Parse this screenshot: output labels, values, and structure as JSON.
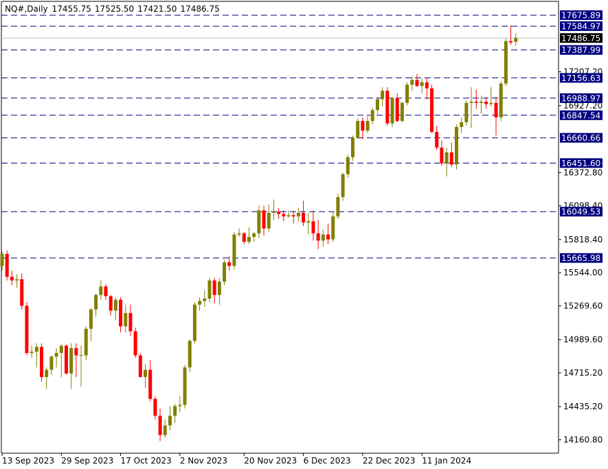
{
  "header": {
    "symbol": "NQ#,Daily",
    "open": "17455.75",
    "high": "17525.50",
    "low": "17421.50",
    "close": "17486.75"
  },
  "colors": {
    "up": "#808000",
    "down": "#ff0000",
    "level_line": "#000080",
    "price_box": "#000080",
    "current_box": "#000000",
    "axis": "#000000"
  },
  "chart_data": {
    "type": "candlestick",
    "title": "",
    "y_range": [
      14050,
      17790
    ],
    "y_tick_labels": [
      "17207.20",
      "16927.20",
      "16372.80",
      "16098.40",
      "15818.40",
      "15544.00",
      "15269.60",
      "14989.60",
      "14715.20",
      "14435.20",
      "14160.80"
    ],
    "x_tick_labels": [
      {
        "label": "13 Sep 2023",
        "index": 0
      },
      {
        "label": "29 Sep 2023",
        "index": 12
      },
      {
        "label": "17 Oct 2023",
        "index": 24
      },
      {
        "label": "2 Nov 2023",
        "index": 36
      },
      {
        "label": "20 Nov 2023",
        "index": 49
      },
      {
        "label": "6 Dec 2023",
        "index": 61
      },
      {
        "label": "22 Dec 2023",
        "index": 73
      },
      {
        "label": "11 Jan 2024",
        "index": 85
      }
    ],
    "levels": [
      "17675.89",
      "17584.97",
      "17387.99",
      "17156.63",
      "16988.97",
      "16847.54",
      "16660.66",
      "16451.60",
      "16049.53",
      "15665.98"
    ],
    "current_price": "17486.75",
    "candles": [
      [
        15600,
        15720,
        15560,
        15700
      ],
      [
        15700,
        15730,
        15480,
        15510
      ],
      [
        15510,
        15560,
        15440,
        15480
      ],
      [
        15480,
        15530,
        15420,
        15490
      ],
      [
        15490,
        15540,
        15240,
        15270
      ],
      [
        15270,
        15300,
        14860,
        14880
      ],
      [
        14880,
        14940,
        14840,
        14890
      ],
      [
        14890,
        14960,
        14760,
        14930
      ],
      [
        14930,
        14960,
        14640,
        14680
      ],
      [
        14680,
        14760,
        14580,
        14740
      ],
      [
        14740,
        14860,
        14700,
        14850
      ],
      [
        14850,
        14920,
        14760,
        14880
      ],
      [
        14880,
        14950,
        14680,
        14940
      ],
      [
        14940,
        14950,
        14700,
        14710
      ],
      [
        14710,
        14960,
        14580,
        14920
      ],
      [
        14920,
        14960,
        14680,
        14860
      ],
      [
        14860,
        14940,
        14600,
        14860
      ],
      [
        14860,
        15100,
        14820,
        15080
      ],
      [
        15080,
        15250,
        14980,
        15240
      ],
      [
        15240,
        15370,
        15180,
        15360
      ],
      [
        15360,
        15480,
        15320,
        15430
      ],
      [
        15430,
        15450,
        15320,
        15350
      ],
      [
        15350,
        15360,
        15190,
        15230
      ],
      [
        15230,
        15340,
        15150,
        15320
      ],
      [
        15320,
        15340,
        15050,
        15100
      ],
      [
        15100,
        15280,
        15050,
        15210
      ],
      [
        15210,
        15280,
        15020,
        15060
      ],
      [
        15060,
        15090,
        14840,
        14860
      ],
      [
        14860,
        14880,
        14680,
        14680
      ],
      [
        14680,
        14790,
        14590,
        14740
      ],
      [
        14740,
        14820,
        14480,
        14500
      ],
      [
        14500,
        14520,
        14330,
        14360
      ],
      [
        14360,
        14420,
        14150,
        14200
      ],
      [
        14200,
        14330,
        14180,
        14280
      ],
      [
        14280,
        14440,
        14240,
        14360
      ],
      [
        14360,
        14460,
        14300,
        14440
      ],
      [
        14440,
        14520,
        14390,
        14450
      ],
      [
        14450,
        14780,
        14420,
        14760
      ],
      [
        14760,
        14990,
        14720,
        14980
      ],
      [
        14980,
        15300,
        14960,
        15280
      ],
      [
        15280,
        15340,
        15230,
        15310
      ],
      [
        15310,
        15400,
        15260,
        15330
      ],
      [
        15330,
        15500,
        15300,
        15480
      ],
      [
        15480,
        15500,
        15290,
        15360
      ],
      [
        15360,
        15500,
        15280,
        15470
      ],
      [
        15470,
        15650,
        15440,
        15630
      ],
      [
        15630,
        15680,
        15560,
        15600
      ],
      [
        15600,
        15880,
        15570,
        15860
      ],
      [
        15860,
        15910,
        15840,
        15870
      ],
      [
        15870,
        15880,
        15780,
        15800
      ],
      [
        15800,
        15920,
        15780,
        15840
      ],
      [
        15840,
        15880,
        15800,
        15870
      ],
      [
        15870,
        16100,
        15830,
        16060
      ],
      [
        16060,
        16100,
        15850,
        15910
      ],
      [
        15910,
        16110,
        15880,
        16040
      ],
      [
        16040,
        16150,
        15980,
        16050
      ],
      [
        16050,
        16080,
        15990,
        16030
      ],
      [
        16030,
        16060,
        15970,
        16010
      ],
      [
        16010,
        16060,
        16000,
        16020
      ],
      [
        16020,
        16060,
        15950,
        16010
      ],
      [
        16010,
        16080,
        15970,
        16040
      ],
      [
        16040,
        16140,
        15930,
        15960
      ],
      [
        15960,
        16040,
        15860,
        15970
      ],
      [
        15970,
        16060,
        15810,
        15870
      ],
      [
        15870,
        15980,
        15740,
        15810
      ],
      [
        15810,
        15900,
        15760,
        15860
      ],
      [
        15860,
        15950,
        15780,
        15820
      ],
      [
        15820,
        16050,
        15800,
        16010
      ],
      [
        16010,
        16200,
        15990,
        16170
      ],
      [
        16170,
        16370,
        16140,
        16360
      ],
      [
        16360,
        16520,
        16330,
        16500
      ],
      [
        16500,
        16680,
        16470,
        16660
      ],
      [
        16660,
        16820,
        16650,
        16800
      ],
      [
        16800,
        16830,
        16650,
        16720
      ],
      [
        16720,
        16840,
        16700,
        16800
      ],
      [
        16800,
        16910,
        16770,
        16890
      ],
      [
        16890,
        17000,
        16860,
        16980
      ],
      [
        16980,
        17080,
        16920,
        17050
      ],
      [
        17050,
        17080,
        16760,
        16780
      ],
      [
        16780,
        17000,
        16750,
        16990
      ],
      [
        16990,
        17030,
        16790,
        16800
      ],
      [
        16800,
        16960,
        16790,
        16950
      ],
      [
        16950,
        17120,
        16930,
        17100
      ],
      [
        17100,
        17170,
        17050,
        17140
      ],
      [
        17140,
        17190,
        17080,
        17090
      ],
      [
        17090,
        17150,
        17030,
        17120
      ],
      [
        17120,
        17160,
        16980,
        17070
      ],
      [
        17070,
        17100,
        16700,
        16710
      ],
      [
        16710,
        16760,
        16560,
        16580
      ],
      [
        16580,
        16640,
        16430,
        16450
      ],
      [
        16450,
        16580,
        16340,
        16540
      ],
      [
        16540,
        16620,
        16420,
        16440
      ],
      [
        16440,
        16770,
        16400,
        16750
      ],
      [
        16750,
        16830,
        16700,
        16790
      ],
      [
        16790,
        16970,
        16760,
        16950
      ],
      [
        16950,
        17080,
        16740,
        16960
      ],
      [
        16960,
        17060,
        16900,
        16950
      ],
      [
        16950,
        17010,
        16860,
        16960
      ],
      [
        16960,
        17000,
        16900,
        16940
      ],
      [
        16940,
        17080,
        16920,
        16950
      ],
      [
        16950,
        17000,
        16680,
        16830
      ],
      [
        16830,
        17130,
        16800,
        17110
      ],
      [
        17110,
        17480,
        17090,
        17460
      ],
      [
        17460,
        17590,
        17430,
        17450
      ],
      [
        17455.75,
        17525.5,
        17421.5,
        17486.75
      ]
    ]
  }
}
